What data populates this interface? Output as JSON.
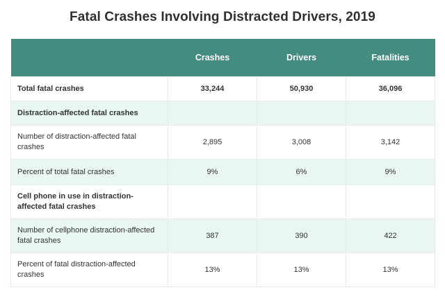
{
  "title": "Fatal Crashes Involving Distracted Drivers, 2019",
  "columns": [
    "",
    "Crashes",
    "Drivers",
    "Fatalities"
  ],
  "rows": [
    {
      "label": "Total fatal crashes",
      "values": [
        "33,244",
        "50,930",
        "36,096"
      ]
    },
    {
      "label": "Distraction-affected fatal crashes",
      "values": [
        "",
        "",
        ""
      ]
    },
    {
      "label": "Number of distraction-affected fatal crashes",
      "values": [
        "2,895",
        "3,008",
        "3,142"
      ]
    },
    {
      "label": "Percent of total fatal crashes",
      "values": [
        "9%",
        "6%",
        "9%"
      ]
    },
    {
      "label": "Cell phone in use in distraction-affected fatal crashes",
      "values": [
        "",
        "",
        ""
      ]
    },
    {
      "label": "Number of cellphone distraction-affected fatal crashes",
      "values": [
        "387",
        "390",
        "422"
      ]
    },
    {
      "label": "Percent of fatal distraction-affected crashes",
      "values": [
        "13%",
        "13%",
        "13%"
      ]
    }
  ],
  "colors": {
    "header_bg": "#458c80",
    "header_text": "#ffffff",
    "shaded_row_bg": "#e9f6f3",
    "border": "#e6ebea"
  }
}
